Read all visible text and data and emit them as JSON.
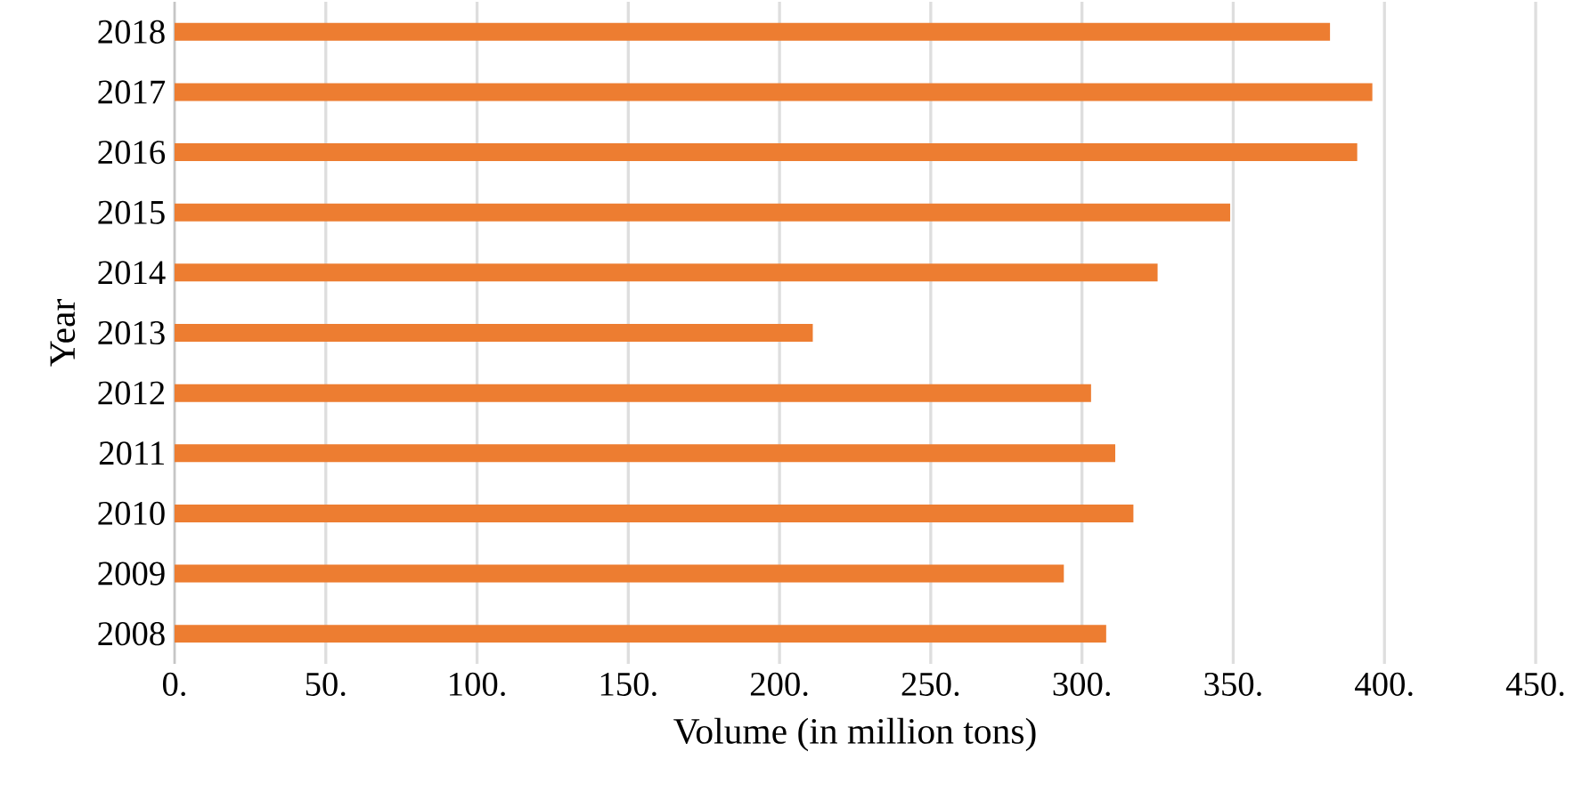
{
  "chart_data": {
    "type": "bar",
    "orientation": "horizontal",
    "xlabel": "Volume (in million tons)",
    "ylabel": "Year",
    "categories": [
      "2018",
      "2017",
      "2016",
      "2015",
      "2014",
      "2013",
      "2012",
      "2011",
      "2010",
      "2009",
      "2008"
    ],
    "values": [
      382,
      396,
      391,
      349,
      325,
      211,
      303,
      311,
      317,
      294,
      308
    ],
    "color": "#ed7d31",
    "xlim": [
      0,
      450
    ],
    "xticks": [
      {
        "value": 0,
        "label": "0."
      },
      {
        "value": 50,
        "label": "50."
      },
      {
        "value": 100,
        "label": "100."
      },
      {
        "value": 150,
        "label": "150."
      },
      {
        "value": 200,
        "label": "200."
      },
      {
        "value": 250,
        "label": "250."
      },
      {
        "value": 300,
        "label": "300."
      },
      {
        "value": 350,
        "label": "350."
      },
      {
        "value": 400,
        "label": "400."
      },
      {
        "value": 450,
        "label": "450."
      }
    ],
    "grid": "x"
  }
}
